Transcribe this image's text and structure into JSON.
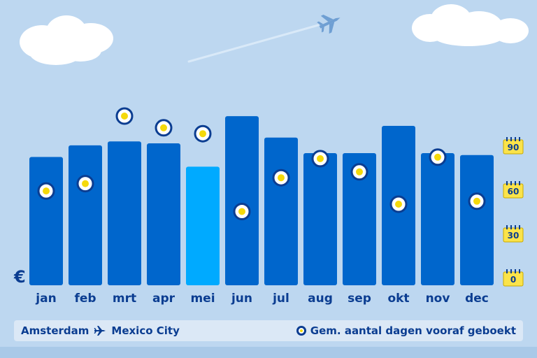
{
  "chart_data": {
    "type": "bar",
    "currency_symbol": "€",
    "categories": [
      "jan",
      "feb",
      "mrt",
      "apr",
      "mei",
      "jun",
      "jul",
      "aug",
      "sep",
      "okt",
      "nov",
      "dec"
    ],
    "price_index": [
      66,
      72,
      74,
      73,
      61,
      87,
      76,
      68,
      68,
      82,
      68,
      67
    ],
    "highlight_index": 4,
    "series": [
      {
        "name": "Gem. aantal dagen vooraf geboekt",
        "values": [
          59,
          64,
          110,
          102,
          98,
          45,
          68,
          81,
          72,
          50,
          82,
          52
        ]
      }
    ],
    "right_axis": {
      "ticks": [
        "0",
        "30",
        "60",
        "90"
      ],
      "ylim": [
        0,
        90
      ]
    },
    "xlabel": "",
    "ylabel": "",
    "legend": "bottom-right",
    "grid": false
  },
  "colors": {
    "background": "#bdd7f0",
    "bar": "#0066cc",
    "bar_highlight": "#00aaff",
    "marker_ring": "#0b3d91",
    "marker_fill": "#ffffff",
    "marker_center": "#f5d90a",
    "text": "#0b3d91",
    "tick_badge": "#fbe34a"
  },
  "legend_bar": {
    "origin": "Amsterdam",
    "destination": "Mexico City",
    "route_icon": "airplane-icon",
    "key_label": "Gem. aantal dagen vooraf geboekt"
  }
}
